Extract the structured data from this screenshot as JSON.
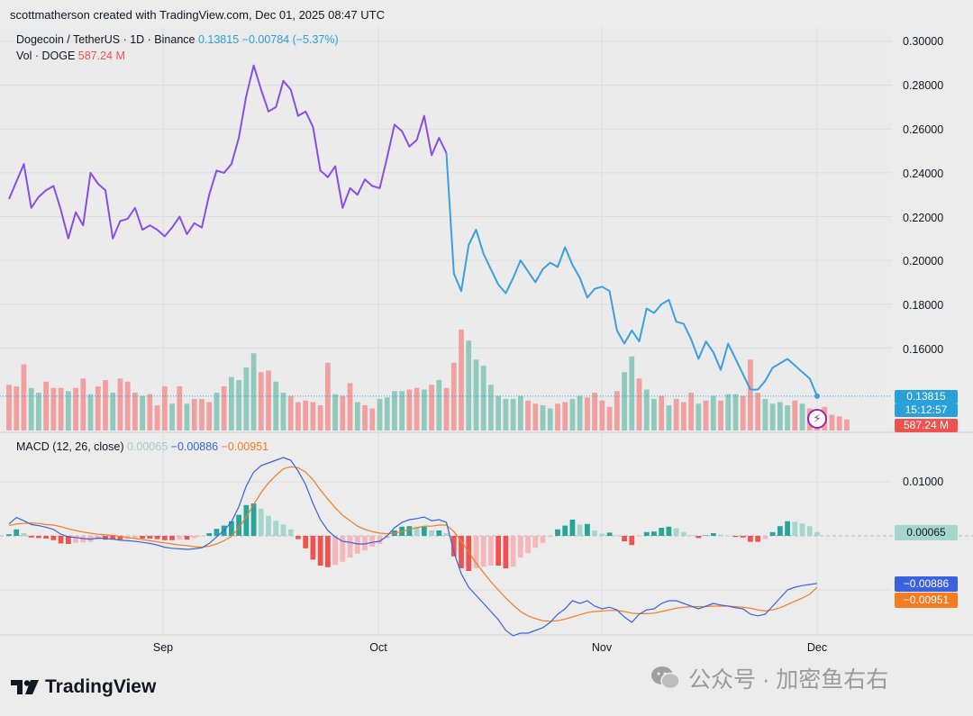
{
  "header": {
    "credit": "scottmatherson created with TradingView.com, Dec 01, 2025 08:47 UTC"
  },
  "legend": {
    "symbol": "Dogecoin / TetherUS · 1D · Binance",
    "price": "0.13815",
    "change": "−0.00784 (−5.37%)",
    "vol_label": "Vol · DOGE",
    "vol_value": "587.24 M",
    "macd_label": "MACD (12, 26, close)",
    "macd_hist": "0.00065",
    "macd_line": "−0.00886",
    "macd_signal": "−0.00951"
  },
  "tags": {
    "price": "0.13815",
    "countdown": "15:12:57",
    "volume": "587.24 M",
    "hist": "0.00065",
    "macd": "−0.00886",
    "signal": "−0.00951"
  },
  "colors": {
    "purple": "#8a4ee8",
    "blue": "#3b9fe0",
    "up": "#8fcabd",
    "down": "#f0a0a0",
    "macd": "#3a62e0",
    "signal": "#f57c20",
    "histUpStrong": "#26a69a",
    "histDownStrong": "#ef5350"
  },
  "chart_data": [
    {
      "type": "line",
      "x_ticks": [
        "Sep",
        "Oct",
        "Nov",
        "Dec"
      ],
      "y_ticks": [
        "0.30000",
        "0.28000",
        "0.26000",
        "0.24000",
        "0.22000",
        "0.20000",
        "0.18000",
        "0.16000"
      ],
      "ylim": [
        0.14,
        0.3
      ],
      "series": [
        {
          "name": "Dogecoin / TetherUS",
          "values": [
            0.228,
            0.236,
            0.244,
            0.224,
            0.229,
            0.232,
            0.234,
            0.223,
            0.21,
            0.222,
            0.216,
            0.24,
            0.235,
            0.232,
            0.21,
            0.218,
            0.219,
            0.224,
            0.214,
            0.216,
            0.214,
            0.211,
            0.215,
            0.22,
            0.212,
            0.217,
            0.215,
            0.23,
            0.241,
            0.24,
            0.244,
            0.256,
            0.275,
            0.289,
            0.278,
            0.268,
            0.27,
            0.282,
            0.278,
            0.266,
            0.268,
            0.261,
            0.241,
            0.238,
            0.243,
            0.224,
            0.233,
            0.23,
            0.237,
            0.234,
            0.233,
            0.247,
            0.262,
            0.259,
            0.252,
            0.255,
            0.266,
            0.248,
            0.256,
            0.249,
            0.194,
            0.186,
            0.207,
            0.214,
            0.203,
            0.196,
            0.189,
            0.185,
            0.192,
            0.2,
            0.195,
            0.19,
            0.196,
            0.199,
            0.197,
            0.206,
            0.198,
            0.192,
            0.183,
            0.187,
            0.188,
            0.186,
            0.168,
            0.162,
            0.168,
            0.163,
            0.178,
            0.176,
            0.18,
            0.182,
            0.172,
            0.171,
            0.164,
            0.155,
            0.163,
            0.158,
            0.15,
            0.162,
            0.155,
            0.148,
            0.141,
            0.141,
            0.145,
            0.151,
            0.153,
            0.155,
            0.152,
            0.149,
            0.146,
            0.138
          ]
        }
      ]
    },
    {
      "type": "bar",
      "name": "Vol · DOGE",
      "values": [
        29,
        28,
        42,
        27,
        24,
        31,
        27,
        27,
        25,
        27,
        33,
        23,
        28,
        32,
        24,
        33,
        31,
        24,
        22,
        23,
        16,
        28,
        17,
        28,
        17,
        20,
        20,
        18,
        24,
        28,
        34,
        32,
        40,
        49,
        37,
        38,
        31,
        24,
        22,
        18,
        19,
        18,
        16,
        43,
        23,
        22,
        30,
        18,
        16,
        14,
        20,
        21,
        25,
        25,
        26,
        27,
        26,
        29,
        32,
        27,
        43,
        64,
        57,
        45,
        41,
        29,
        22,
        20,
        20,
        22,
        19,
        17,
        16,
        14,
        17,
        18,
        20,
        22,
        21,
        24,
        19,
        15,
        25,
        37,
        47,
        33,
        26,
        20,
        22,
        16,
        20,
        18,
        24,
        17,
        19,
        22,
        19,
        23,
        23,
        22,
        45,
        24,
        20,
        17,
        18,
        16,
        19,
        17,
        14,
        12,
        15,
        10,
        9,
        7
      ],
      "up": [
        0,
        0,
        0,
        1,
        1,
        0,
        0,
        0,
        1,
        0,
        0,
        1,
        0,
        0,
        1,
        0,
        0,
        0,
        1,
        0,
        0,
        0,
        1,
        0,
        1,
        0,
        0,
        0,
        1,
        0,
        1,
        1,
        1,
        1,
        0,
        0,
        1,
        1,
        0,
        0,
        0,
        0,
        0,
        0,
        1,
        0,
        0,
        1,
        0,
        0,
        1,
        1,
        1,
        1,
        0,
        0,
        1,
        0,
        1,
        0,
        0,
        0,
        1,
        1,
        1,
        1,
        1,
        1,
        1,
        1,
        0,
        0,
        1,
        1,
        0,
        0,
        1,
        1,
        0,
        0,
        0,
        0,
        0,
        1,
        1,
        0,
        1,
        1,
        0,
        1,
        0,
        0,
        0,
        1,
        0,
        1,
        0,
        1,
        1,
        0,
        0,
        0,
        1,
        1,
        1,
        1,
        0,
        1,
        0,
        0,
        0,
        0,
        0,
        0
      ]
    },
    {
      "type": "line",
      "name": "MACD (12, 26, close)",
      "y_ticks": [
        "0.01000"
      ],
      "ylim": [
        -0.0165,
        0.0158
      ],
      "macd": [
        0.0022,
        0.0034,
        0.0028,
        0.0021,
        0.0019,
        0.0016,
        0.0012,
        0.0003,
        -0.0002,
        -0.0003,
        -0.0005,
        -0.0006,
        -0.0004,
        -0.0005,
        -0.0006,
        -0.0008,
        -0.0009,
        -0.001,
        -0.0012,
        -0.0014,
        -0.0017,
        -0.0021,
        -0.0023,
        -0.0024,
        -0.0025,
        -0.0024,
        -0.0022,
        -0.0014,
        -0.0002,
        0.001,
        0.0026,
        0.0054,
        0.0092,
        0.0118,
        0.013,
        0.0135,
        0.014,
        0.0145,
        0.014,
        0.012,
        0.0095,
        0.006,
        0.003,
        0.001,
        -0.0002,
        -0.001,
        -0.0012,
        -0.0015,
        -0.0015,
        -0.0012,
        -0.001,
        0.0,
        0.0015,
        0.0025,
        0.003,
        0.0032,
        0.0035,
        0.0028,
        0.003,
        0.0025,
        -0.003,
        -0.007,
        -0.0095,
        -0.011,
        -0.0125,
        -0.014,
        -0.0155,
        -0.0175,
        -0.0185,
        -0.018,
        -0.018,
        -0.0175,
        -0.017,
        -0.016,
        -0.0145,
        -0.0135,
        -0.012,
        -0.0125,
        -0.012,
        -0.013,
        -0.0135,
        -0.0132,
        -0.0137,
        -0.015,
        -0.016,
        -0.0145,
        -0.0137,
        -0.0135,
        -0.0125,
        -0.012,
        -0.012,
        -0.0125,
        -0.013,
        -0.0135,
        -0.013,
        -0.0125,
        -0.0128,
        -0.013,
        -0.0133,
        -0.0135,
        -0.0145,
        -0.0148,
        -0.0145,
        -0.013,
        -0.0115,
        -0.01,
        -0.0095,
        -0.0092,
        -0.009,
        -0.0088
      ],
      "signal": [
        0.0019,
        0.0022,
        0.0023,
        0.0024,
        0.0023,
        0.0021,
        0.002,
        0.0017,
        0.0013,
        0.001,
        0.0007,
        0.0005,
        0.0003,
        0.0002,
        0.0001,
        -0.0001,
        -0.0003,
        -0.0005,
        -0.0007,
        -0.0009,
        -0.0011,
        -0.0013,
        -0.0015,
        -0.0017,
        -0.0018,
        -0.002,
        -0.0021,
        -0.0019,
        -0.0015,
        -0.0009,
        -0.0001,
        0.0015,
        0.0035,
        0.0058,
        0.008,
        0.0098,
        0.0112,
        0.0124,
        0.0128,
        0.0126,
        0.0118,
        0.0104,
        0.0085,
        0.0068,
        0.0052,
        0.0038,
        0.0028,
        0.0018,
        0.0012,
        0.0008,
        0.0005,
        0.0004,
        0.0005,
        0.0008,
        0.0012,
        0.0015,
        0.0018,
        0.0018,
        0.002,
        0.002,
        0.0008,
        -0.001,
        -0.003,
        -0.005,
        -0.0068,
        -0.0085,
        -0.01,
        -0.0115,
        -0.0128,
        -0.014,
        -0.0148,
        -0.0153,
        -0.0157,
        -0.0158,
        -0.0157,
        -0.0154,
        -0.015,
        -0.0146,
        -0.0142,
        -0.014,
        -0.0139,
        -0.0138,
        -0.0138,
        -0.014,
        -0.0143,
        -0.0144,
        -0.0144,
        -0.0143,
        -0.014,
        -0.0137,
        -0.0134,
        -0.0132,
        -0.0131,
        -0.0131,
        -0.0131,
        -0.013,
        -0.013,
        -0.013,
        -0.0131,
        -0.0132,
        -0.0134,
        -0.0137,
        -0.0139,
        -0.0137,
        -0.0133,
        -0.0127,
        -0.0121,
        -0.0115,
        -0.0108,
        -0.0095
      ],
      "hist": [
        0.0003,
        0.0012,
        0.0005,
        -0.0003,
        -0.0004,
        -0.0005,
        -0.0008,
        -0.0014,
        -0.0015,
        -0.0013,
        -0.0012,
        -0.0011,
        -0.0007,
        -0.0007,
        -0.0007,
        -0.0007,
        -0.0006,
        -0.0005,
        -0.0005,
        -0.0005,
        -0.0006,
        -0.0008,
        -0.0008,
        -0.0007,
        -0.0007,
        -0.0004,
        -0.0001,
        0.0005,
        0.0013,
        0.0019,
        0.0027,
        0.0039,
        0.0057,
        0.006,
        0.005,
        0.0037,
        0.0028,
        0.0021,
        0.0012,
        -0.0006,
        -0.0023,
        -0.0044,
        -0.0055,
        -0.0058,
        -0.0054,
        -0.0048,
        -0.004,
        -0.0033,
        -0.0027,
        -0.002,
        -0.0015,
        -0.0004,
        0.001,
        0.0017,
        0.0018,
        0.0017,
        0.0017,
        0.001,
        0.001,
        0.0005,
        -0.0038,
        -0.006,
        -0.0065,
        -0.006,
        -0.0057,
        -0.0055,
        -0.0055,
        -0.006,
        -0.0057,
        -0.004,
        -0.0032,
        -0.0022,
        -0.0013,
        -0.0002,
        0.0012,
        0.0019,
        0.003,
        0.0021,
        0.0022,
        0.001,
        0.0004,
        0.0006,
        0.0001,
        -0.001,
        -0.0017,
        -0.0001,
        0.0007,
        0.0008,
        0.0015,
        0.0017,
        0.0014,
        0.0007,
        0.0001,
        -0.0004,
        0.0001,
        0.0005,
        0.0002,
        0.0,
        -0.0002,
        -0.0003,
        -0.0011,
        -0.0011,
        -0.0006,
        0.0007,
        0.0018,
        0.0027,
        0.0026,
        0.0023,
        0.0018,
        0.0007
      ]
    }
  ]
}
